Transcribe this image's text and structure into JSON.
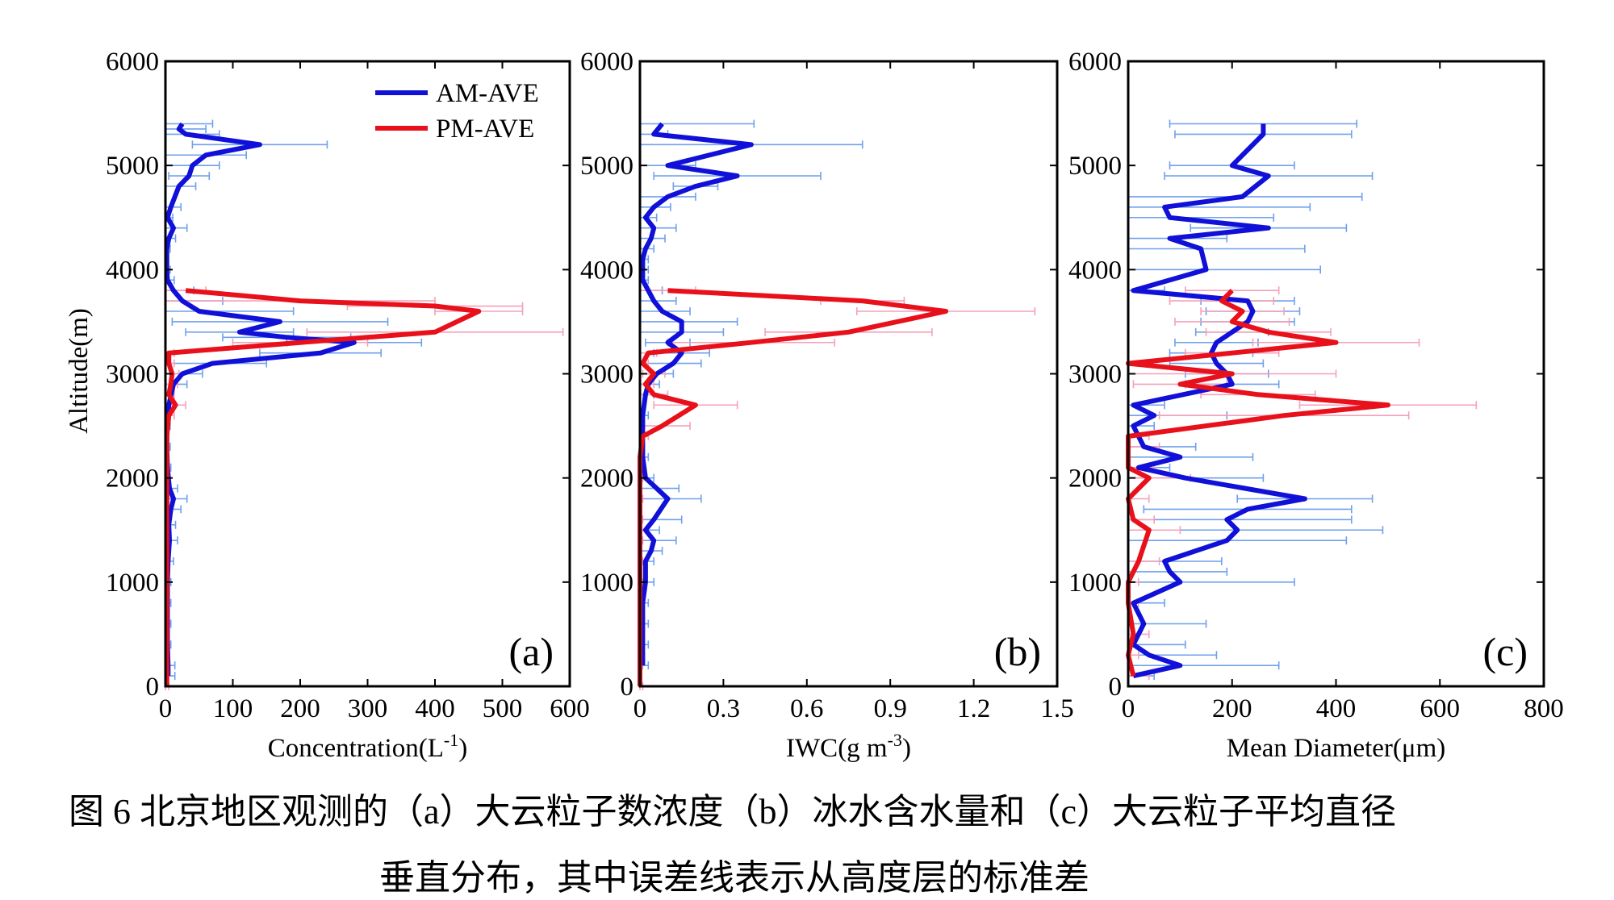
{
  "chart_data": [
    {
      "type": "line",
      "panel_label": "(a)",
      "ylabel": "Altitude(m)",
      "xlabel": "Concentration(L",
      "xlabel_sup": "-1",
      "xlabel_tail": ")",
      "xlim": [
        0,
        600
      ],
      "ylim": [
        0,
        6000
      ],
      "xticks": [
        "0",
        "100",
        "200",
        "300",
        "400",
        "500",
        "600"
      ],
      "yticks": [
        "0",
        "1000",
        "2000",
        "3000",
        "4000",
        "5000",
        "6000"
      ],
      "legend": [
        "AM-AVE",
        "PM-AVE"
      ],
      "series": [
        {
          "name": "AM-AVE",
          "color": "#1010d8",
          "points": [
            [
              4,
              100
            ],
            [
              4,
              200
            ],
            [
              3,
              400
            ],
            [
              3,
              600
            ],
            [
              3,
              800
            ],
            [
              3,
              1000
            ],
            [
              4,
              1200
            ],
            [
              6,
              1400
            ],
            [
              5,
              1550
            ],
            [
              8,
              1700
            ],
            [
              12,
              1800
            ],
            [
              6,
              1900
            ],
            [
              3,
              2100
            ],
            [
              2,
              2300
            ],
            [
              2,
              2500
            ],
            [
              5,
              2700
            ],
            [
              12,
              2900
            ],
            [
              25,
              3000
            ],
            [
              70,
              3100
            ],
            [
              230,
              3200
            ],
            [
              280,
              3300
            ],
            [
              180,
              3350
            ],
            [
              110,
              3400
            ],
            [
              170,
              3500
            ],
            [
              50,
              3600
            ],
            [
              25,
              3700
            ],
            [
              12,
              3800
            ],
            [
              3,
              3900
            ],
            [
              2,
              4000
            ],
            [
              2,
              4200
            ],
            [
              5,
              4300
            ],
            [
              12,
              4400
            ],
            [
              3,
              4500
            ],
            [
              8,
              4600
            ],
            [
              20,
              4800
            ],
            [
              35,
              4900
            ],
            [
              40,
              5000
            ],
            [
              60,
              5100
            ],
            [
              140,
              5200
            ],
            [
              30,
              5300
            ],
            [
              20,
              5350
            ],
            [
              25,
              5400
            ]
          ],
          "err": [
            10,
            10,
            5,
            5,
            5,
            5,
            8,
            12,
            10,
            15,
            20,
            12,
            5,
            5,
            5,
            10,
            20,
            30,
            80,
            90,
            100,
            95,
            80,
            160,
            140,
            60,
            30,
            10,
            5,
            5,
            10,
            20,
            8,
            15,
            25,
            30,
            40,
            60,
            100,
            50,
            40,
            45
          ]
        },
        {
          "name": "PM-AVE",
          "color": "#e8101a",
          "points": [
            [
              2,
              0
            ],
            [
              2,
              200
            ],
            [
              2,
              400
            ],
            [
              2,
              600
            ],
            [
              2,
              800
            ],
            [
              2,
              1000
            ],
            [
              2,
              1200
            ],
            [
              2,
              1400
            ],
            [
              2,
              1600
            ],
            [
              2,
              1800
            ],
            [
              2,
              2000
            ],
            [
              2,
              2200
            ],
            [
              2,
              2400
            ],
            [
              5,
              2600
            ],
            [
              15,
              2700
            ],
            [
              5,
              2800
            ],
            [
              8,
              2900
            ],
            [
              10,
              3000
            ],
            [
              5,
              3100
            ],
            [
              5,
              3200
            ],
            [
              200,
              3300
            ],
            [
              400,
              3400
            ],
            [
              465,
              3600
            ],
            [
              400,
              3650
            ],
            [
              200,
              3700
            ],
            [
              30,
              3800
            ]
          ],
          "err": [
            3,
            3,
            3,
            3,
            3,
            3,
            3,
            3,
            3,
            3,
            3,
            3,
            3,
            8,
            15,
            8,
            10,
            10,
            8,
            8,
            100,
            190,
            65,
            130,
            200,
            30
          ]
        }
      ]
    },
    {
      "type": "line",
      "panel_label": "(b)",
      "xlabel": "IWC(g m",
      "xlabel_sup": "-3",
      "xlabel_tail": ")",
      "xlim": [
        0,
        1.5
      ],
      "ylim": [
        0,
        6000
      ],
      "xticks": [
        "0",
        "0.3",
        "0.6",
        "0.9",
        "1.2",
        "1.5"
      ],
      "yticks": [
        "0",
        "1000",
        "2000",
        "3000",
        "4000",
        "5000",
        "6000"
      ],
      "series": [
        {
          "name": "AM-AVE",
          "color": "#1010d8",
          "points": [
            [
              0.01,
              200
            ],
            [
              0.01,
              400
            ],
            [
              0.01,
              600
            ],
            [
              0.01,
              800
            ],
            [
              0.02,
              1000
            ],
            [
              0.02,
              1200
            ],
            [
              0.04,
              1300
            ],
            [
              0.05,
              1400
            ],
            [
              0.02,
              1500
            ],
            [
              0.05,
              1600
            ],
            [
              0.1,
              1800
            ],
            [
              0.06,
              1900
            ],
            [
              0.02,
              2000
            ],
            [
              0.01,
              2200
            ],
            [
              0.01,
              2400
            ],
            [
              0.01,
              2600
            ],
            [
              0.02,
              2800
            ],
            [
              0.03,
              2900
            ],
            [
              0.06,
              3000
            ],
            [
              0.12,
              3100
            ],
            [
              0.15,
              3200
            ],
            [
              0.1,
              3300
            ],
            [
              0.15,
              3400
            ],
            [
              0.15,
              3500
            ],
            [
              0.08,
              3600
            ],
            [
              0.05,
              3700
            ],
            [
              0.03,
              3800
            ],
            [
              0.01,
              3900
            ],
            [
              0.01,
              4000
            ],
            [
              0.01,
              4100
            ],
            [
              0.02,
              4200
            ],
            [
              0.04,
              4300
            ],
            [
              0.05,
              4400
            ],
            [
              0.02,
              4500
            ],
            [
              0.05,
              4600
            ],
            [
              0.1,
              4700
            ],
            [
              0.2,
              4800
            ],
            [
              0.35,
              4900
            ],
            [
              0.1,
              5000
            ],
            [
              0.4,
              5200
            ],
            [
              0.05,
              5300
            ],
            [
              0.08,
              5400
            ]
          ],
          "err": [
            0.02,
            0.02,
            0.02,
            0.02,
            0.03,
            0.03,
            0.04,
            0.08,
            0.05,
            0.1,
            0.12,
            0.08,
            0.03,
            0.02,
            0.02,
            0.02,
            0.03,
            0.04,
            0.06,
            0.1,
            0.1,
            0.08,
            0.15,
            0.2,
            0.1,
            0.08,
            0.05,
            0.02,
            0.02,
            0.02,
            0.03,
            0.05,
            0.08,
            0.04,
            0.06,
            0.1,
            0.08,
            0.3,
            0.1,
            0.4,
            0.05,
            0.33
          ]
        },
        {
          "name": "PM-AVE",
          "color": "#e8101a",
          "points": [
            [
              0.0,
              0
            ],
            [
              0.0,
              200
            ],
            [
              0.0,
              400
            ],
            [
              0.0,
              600
            ],
            [
              0.0,
              800
            ],
            [
              0.0,
              1000
            ],
            [
              0.0,
              1200
            ],
            [
              0.0,
              1400
            ],
            [
              0.0,
              1600
            ],
            [
              0.0,
              1800
            ],
            [
              0.0,
              2000
            ],
            [
              0.0,
              2200
            ],
            [
              0.01,
              2400
            ],
            [
              0.08,
              2500
            ],
            [
              0.2,
              2700
            ],
            [
              0.05,
              2800
            ],
            [
              0.02,
              2900
            ],
            [
              0.05,
              3000
            ],
            [
              0.01,
              3100
            ],
            [
              0.03,
              3200
            ],
            [
              0.4,
              3300
            ],
            [
              0.75,
              3400
            ],
            [
              1.1,
              3600
            ],
            [
              0.8,
              3700
            ],
            [
              0.1,
              3800
            ]
          ],
          "err": [
            0.01,
            0.01,
            0.01,
            0.01,
            0.01,
            0.01,
            0.01,
            0.01,
            0.01,
            0.01,
            0.01,
            0.01,
            0.02,
            0.1,
            0.15,
            0.05,
            0.03,
            0.04,
            0.02,
            0.03,
            0.3,
            0.3,
            0.32,
            0.15,
            0.1
          ]
        }
      ]
    },
    {
      "type": "line",
      "panel_label": "(c)",
      "xlabel": "Mean Diameter(μm)",
      "xlim": [
        0,
        800
      ],
      "ylim": [
        0,
        6000
      ],
      "xticks": [
        "0",
        "200",
        "400",
        "600",
        "800"
      ],
      "yticks": [
        "0",
        "1000",
        "2000",
        "3000",
        "4000",
        "5000",
        "6000"
      ],
      "series": [
        {
          "name": "AM-AVE",
          "color": "#1010d8",
          "points": [
            [
              10,
              100
            ],
            [
              100,
              200
            ],
            [
              40,
              300
            ],
            [
              10,
              400
            ],
            [
              30,
              600
            ],
            [
              10,
              800
            ],
            [
              100,
              1000
            ],
            [
              80,
              1100
            ],
            [
              70,
              1200
            ],
            [
              190,
              1400
            ],
            [
              210,
              1500
            ],
            [
              190,
              1600
            ],
            [
              230,
              1700
            ],
            [
              340,
              1800
            ],
            [
              110,
              2000
            ],
            [
              20,
              2100
            ],
            [
              100,
              2200
            ],
            [
              30,
              2300
            ],
            [
              10,
              2500
            ],
            [
              50,
              2600
            ],
            [
              10,
              2700
            ],
            [
              200,
              2900
            ],
            [
              190,
              3000
            ],
            [
              170,
              3100
            ],
            [
              160,
              3200
            ],
            [
              170,
              3300
            ],
            [
              200,
              3400
            ],
            [
              230,
              3500
            ],
            [
              240,
              3600
            ],
            [
              230,
              3700
            ],
            [
              10,
              3800
            ],
            [
              150,
              4000
            ],
            [
              140,
              4200
            ],
            [
              80,
              4300
            ],
            [
              270,
              4400
            ],
            [
              80,
              4500
            ],
            [
              70,
              4600
            ],
            [
              220,
              4700
            ],
            [
              270,
              4900
            ],
            [
              200,
              5000
            ],
            [
              260,
              5300
            ],
            [
              260,
              5400
            ]
          ],
          "err": [
            40,
            190,
            130,
            100,
            120,
            60,
            220,
            110,
            110,
            230,
            280,
            240,
            200,
            130,
            150,
            60,
            140,
            100,
            40,
            140,
            60,
            90,
            80,
            90,
            80,
            80,
            70,
            90,
            90,
            90,
            60,
            220,
            200,
            110,
            150,
            200,
            280,
            230,
            200,
            120,
            170,
            180
          ]
        },
        {
          "name": "PM-AVE",
          "color": "#e8101a",
          "points": [
            [
              10,
              100
            ],
            [
              0,
              300
            ],
            [
              10,
              500
            ],
            [
              0,
              800
            ],
            [
              0,
              1000
            ],
            [
              20,
              1200
            ],
            [
              40,
              1500
            ],
            [
              10,
              1600
            ],
            [
              0,
              1800
            ],
            [
              40,
              2000
            ],
            [
              0,
              2100
            ],
            [
              0,
              2300
            ],
            [
              0,
              2400
            ],
            [
              300,
              2600
            ],
            [
              500,
              2700
            ],
            [
              250,
              2800
            ],
            [
              100,
              2900
            ],
            [
              200,
              3000
            ],
            [
              0,
              3100
            ],
            [
              200,
              3200
            ],
            [
              400,
              3300
            ],
            [
              270,
              3400
            ],
            [
              200,
              3500
            ],
            [
              220,
              3600
            ],
            [
              180,
              3700
            ],
            [
              200,
              3800
            ]
          ],
          "err": [
            30,
            20,
            30,
            20,
            20,
            40,
            60,
            40,
            40,
            80,
            50,
            60,
            40,
            240,
            170,
            110,
            90,
            200,
            40,
            90,
            160,
            120,
            110,
            80,
            100,
            90
          ]
        }
      ]
    }
  ],
  "caption": {
    "line1": "图 6  北京地区观测的（a）大云粒子数浓度（b）冰水含水量和（c）大云粒子平均直径",
    "line2": "垂直分布，其中误差线表示从高度层的标准差"
  }
}
